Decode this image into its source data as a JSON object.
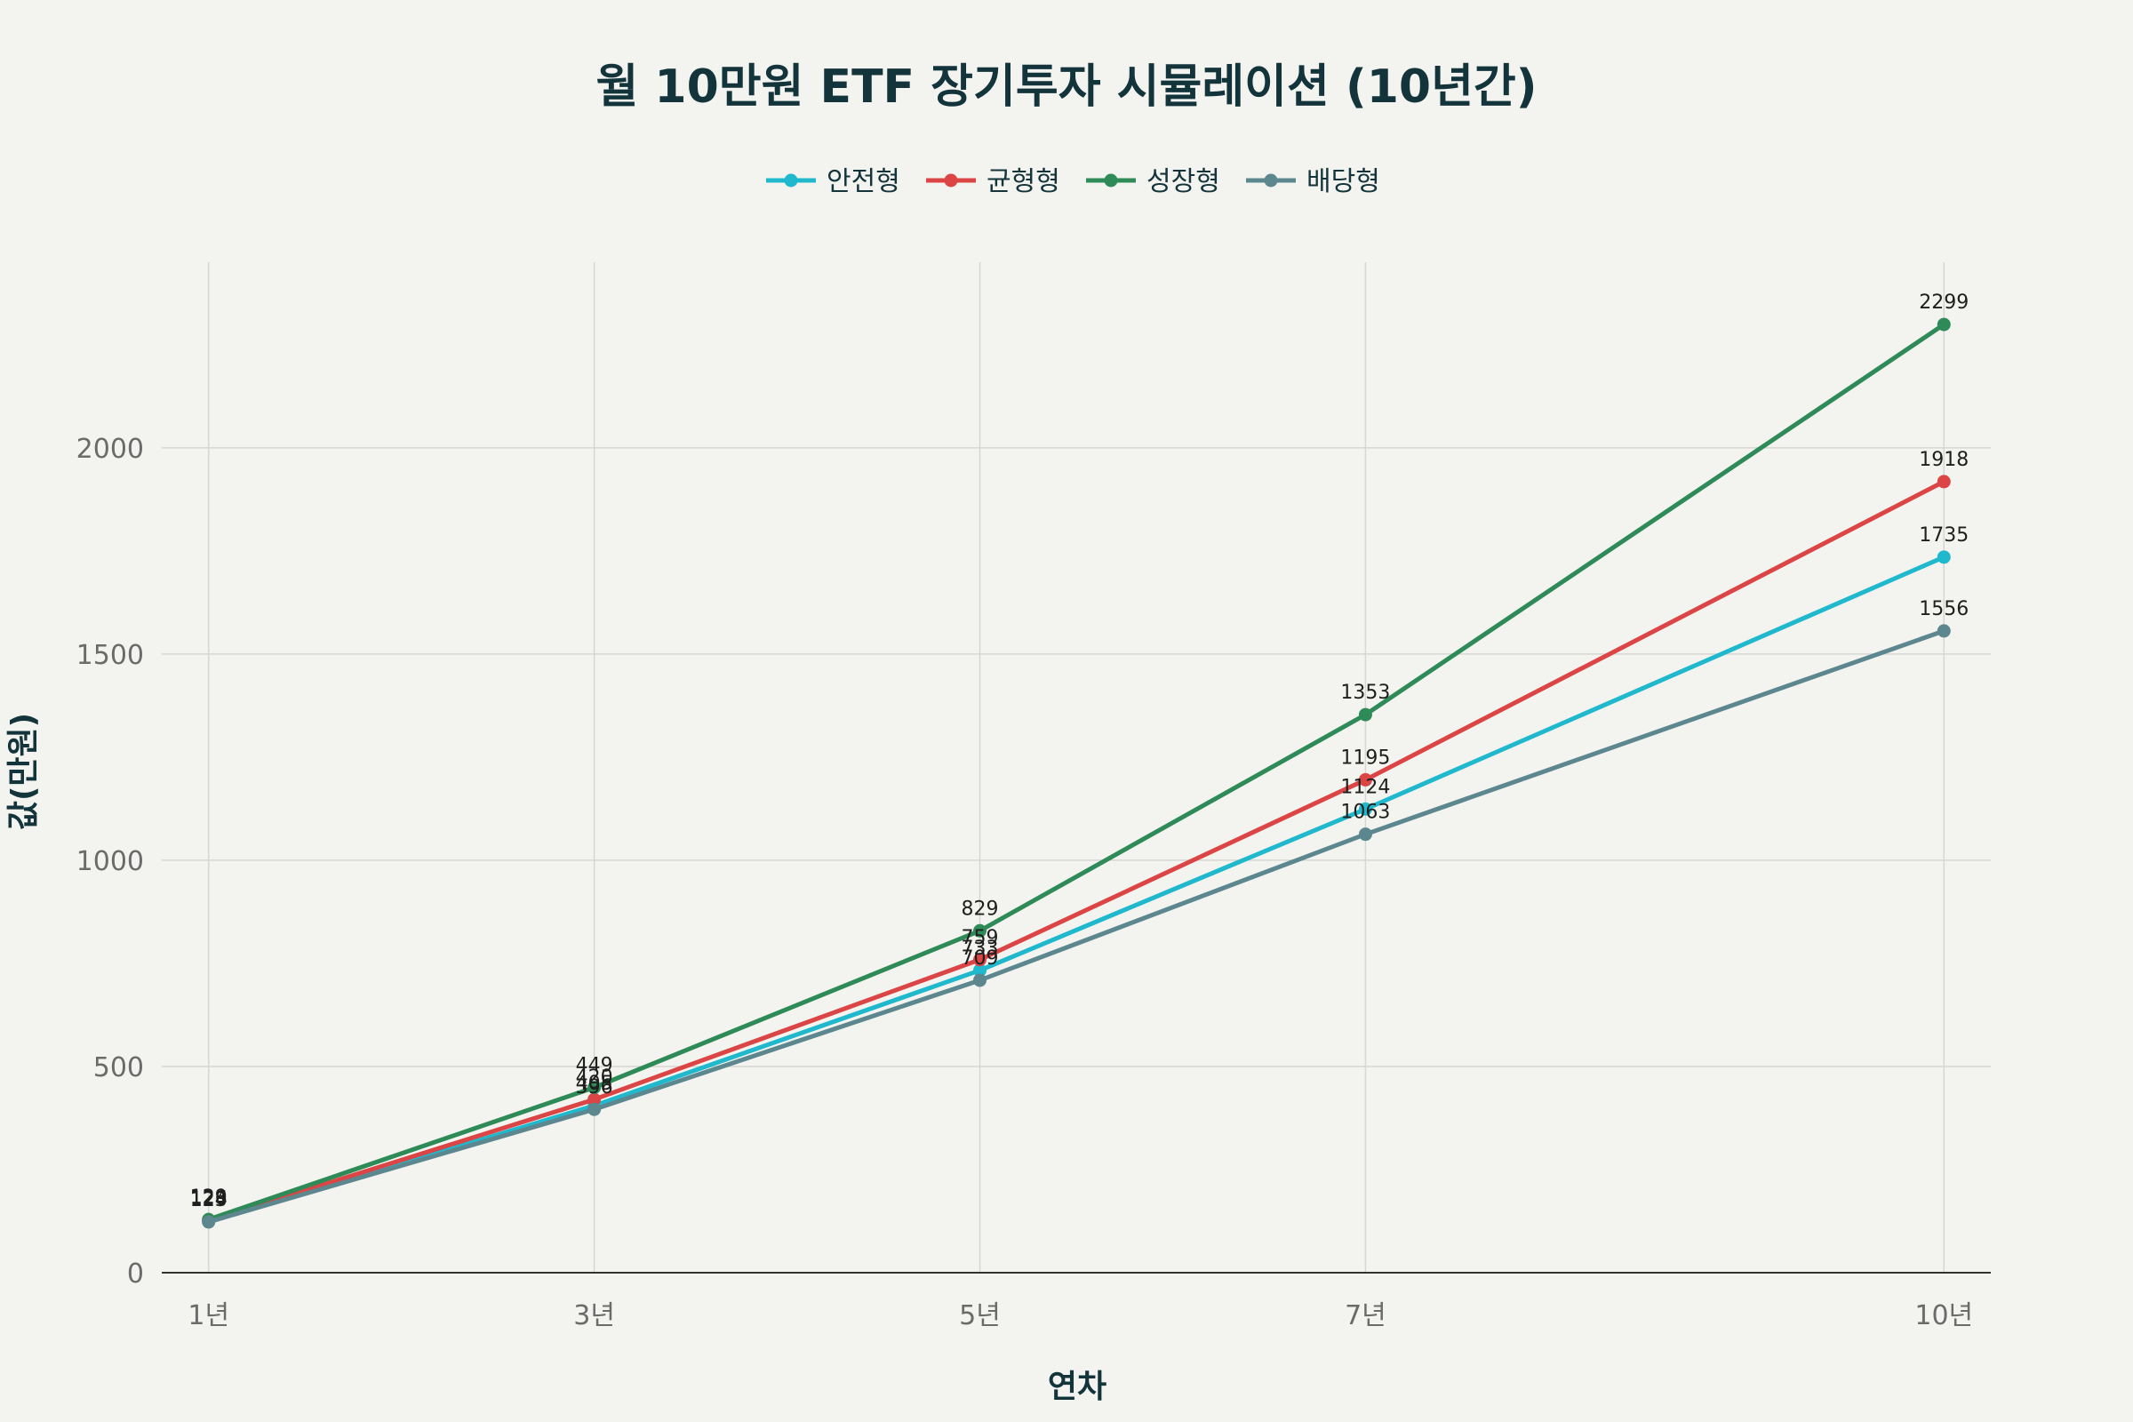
{
  "chart_data": {
    "type": "line",
    "title": "월 10만원 ETF 장기투자 시뮬레이션 (10년간)",
    "xlabel": "연차",
    "ylabel": "값(만원)",
    "categories": [
      "1년",
      "3년",
      "5년",
      "7년",
      "10년"
    ],
    "x": [
      1,
      3,
      5,
      7,
      10
    ],
    "ylim": [
      0,
      2450
    ],
    "yticks": [
      0,
      500,
      1000,
      1500,
      2000
    ],
    "grid": true,
    "legend_position": "top-center",
    "series": [
      {
        "name": "안전형",
        "color": "#1fb8cd",
        "values": [
          124,
          405,
          733,
          1124,
          1735
        ]
      },
      {
        "name": "균형형",
        "color": "#db4545",
        "values": [
          126,
          420,
          759,
          1195,
          1918
        ]
      },
      {
        "name": "성장형",
        "color": "#2e8b57",
        "values": [
          129,
          449,
          829,
          1353,
          2299
        ]
      },
      {
        "name": "배당형",
        "color": "#5d878f",
        "values": [
          123,
          396,
          709,
          1063,
          1556
        ]
      }
    ]
  }
}
